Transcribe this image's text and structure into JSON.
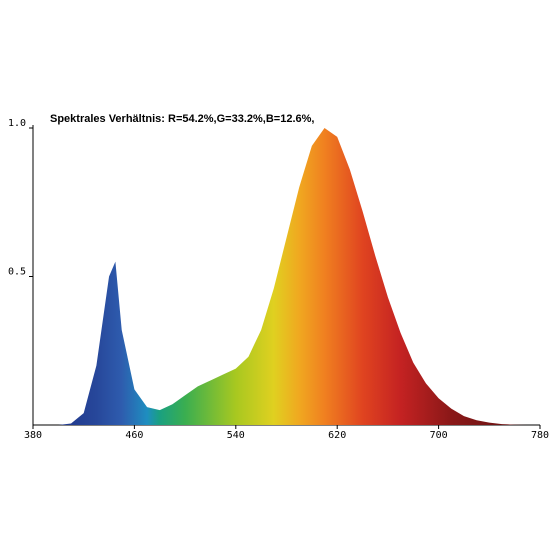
{
  "chart_data": {
    "type": "area",
    "title": "Spektrales Verhältnis:  R=54.2%,G=33.2%,B=12.6%,",
    "x": [
      380,
      390,
      400,
      410,
      420,
      430,
      440,
      445,
      450,
      460,
      470,
      480,
      490,
      500,
      510,
      520,
      530,
      540,
      550,
      560,
      570,
      580,
      590,
      600,
      610,
      620,
      630,
      640,
      650,
      660,
      670,
      680,
      690,
      700,
      710,
      720,
      730,
      740,
      750,
      760,
      770,
      780
    ],
    "values": [
      0,
      0,
      0,
      0.005,
      0.04,
      0.2,
      0.5,
      0.55,
      0.32,
      0.12,
      0.06,
      0.05,
      0.07,
      0.1,
      0.13,
      0.15,
      0.17,
      0.19,
      0.23,
      0.32,
      0.46,
      0.63,
      0.8,
      0.94,
      1.0,
      0.97,
      0.86,
      0.72,
      0.57,
      0.43,
      0.31,
      0.21,
      0.14,
      0.09,
      0.055,
      0.03,
      0.016,
      0.008,
      0.003,
      0.001,
      0,
      0
    ],
    "xlim": [
      380,
      780
    ],
    "ylim": [
      0,
      1.0
    ],
    "xticks": [
      380,
      460,
      540,
      620,
      700,
      780
    ],
    "yticks": [
      0.5,
      {
        "value": 1,
        "label": "1.0"
      }
    ]
  }
}
